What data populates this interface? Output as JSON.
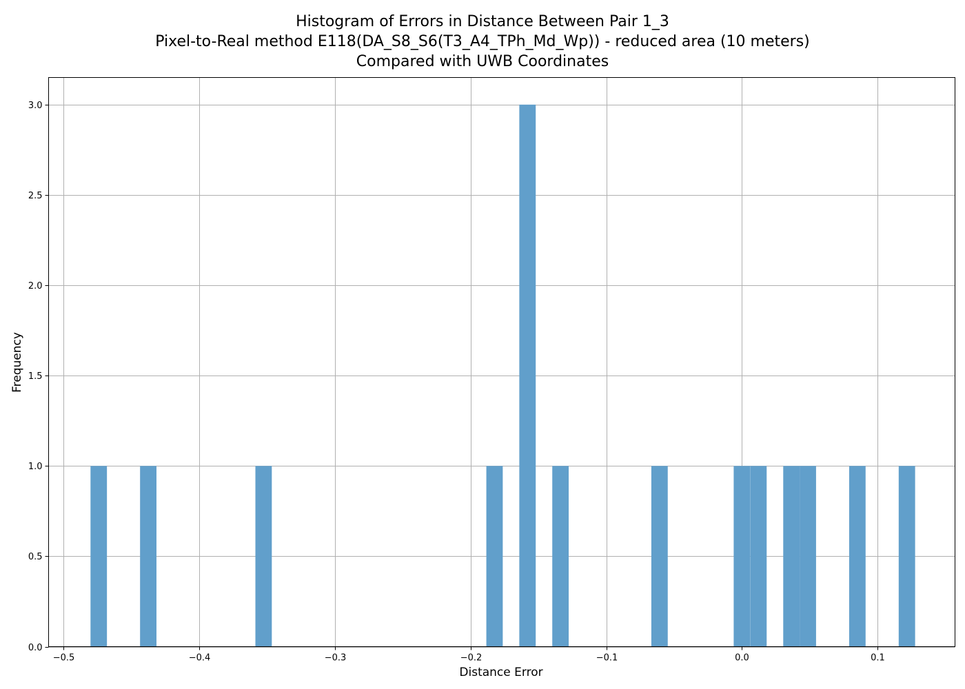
{
  "chart_data": {
    "type": "bar",
    "title_lines": [
      "Histogram of Errors in Distance Between Pair 1_3",
      "Pixel-to-Real method E118(DA_S8_S6(T3_A4_TPh_Md_Wp)) - reduced area (10 meters)",
      "Compared with UWB Coordinates"
    ],
    "xlabel": "Distance Error",
    "ylabel": "Frequency",
    "xlim": [
      -0.511,
      0.157
    ],
    "ylim": [
      0,
      3.15
    ],
    "grid": true,
    "bar_color": "#619fcb",
    "bin_width": 0.0121,
    "x_ticks": [
      {
        "value": -0.5,
        "label": "−0.5"
      },
      {
        "value": -0.4,
        "label": "−0.4"
      },
      {
        "value": -0.3,
        "label": "−0.3"
      },
      {
        "value": -0.2,
        "label": "−0.2"
      },
      {
        "value": -0.1,
        "label": "−0.1"
      },
      {
        "value": 0.0,
        "label": "0.0"
      },
      {
        "value": 0.1,
        "label": "0.1"
      }
    ],
    "y_ticks": [
      {
        "value": 0.0,
        "label": "0.0"
      },
      {
        "value": 0.5,
        "label": "0.5"
      },
      {
        "value": 1.0,
        "label": "1.0"
      },
      {
        "value": 1.5,
        "label": "1.5"
      },
      {
        "value": 2.0,
        "label": "2.0"
      },
      {
        "value": 2.5,
        "label": "2.5"
      },
      {
        "value": 3.0,
        "label": "3.0"
      }
    ],
    "bins": [
      {
        "start": -0.4801,
        "count": 1
      },
      {
        "start": -0.4436,
        "count": 1
      },
      {
        "start": -0.3586,
        "count": 1
      },
      {
        "start": -0.1884,
        "count": 1
      },
      {
        "start": -0.1641,
        "count": 3
      },
      {
        "start": -0.1398,
        "count": 1
      },
      {
        "start": -0.0668,
        "count": 1
      },
      {
        "start": -0.0061,
        "count": 1
      },
      {
        "start": 0.0061,
        "count": 1
      },
      {
        "start": 0.0304,
        "count": 1
      },
      {
        "start": 0.0425,
        "count": 1
      },
      {
        "start": 0.079,
        "count": 1
      },
      {
        "start": 0.1155,
        "count": 1
      }
    ]
  }
}
